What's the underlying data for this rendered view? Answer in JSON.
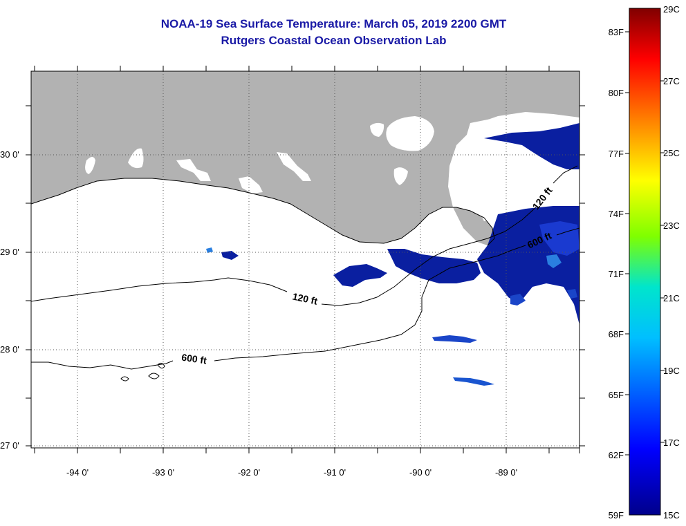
{
  "title": "NOAA-19 Sea Surface Temperature:  March 05, 2019 2200 GMT",
  "subtitle": "Rutgers Coastal Ocean Observation Lab",
  "map": {
    "lon_ticks": [
      "-94 0'",
      "-93 0'",
      "-92 0'",
      "-91 0'",
      "-90 0'",
      "-89 0'"
    ],
    "lat_ticks": [
      "30 0'",
      "29 0'",
      "28 0'",
      "27 0'"
    ],
    "contour_labels": [
      "120 ft",
      "600 ft",
      "120 ft",
      "600 ft"
    ],
    "colors": {
      "land": "#b2b2b2",
      "cloud": "#ffffff",
      "cold_water": "#0a1fa0"
    }
  },
  "colorbar": {
    "celsius_labels": [
      "29C",
      "27C",
      "25C",
      "23C",
      "21C",
      "19C",
      "17C",
      "15C"
    ],
    "fahrenheit_labels": [
      "83F",
      "80F",
      "77F",
      "74F",
      "71F",
      "68F",
      "65F",
      "62F",
      "59F"
    ],
    "celsius_range": [
      15,
      29
    ],
    "fahrenheit_range": [
      59,
      84.2
    ]
  }
}
